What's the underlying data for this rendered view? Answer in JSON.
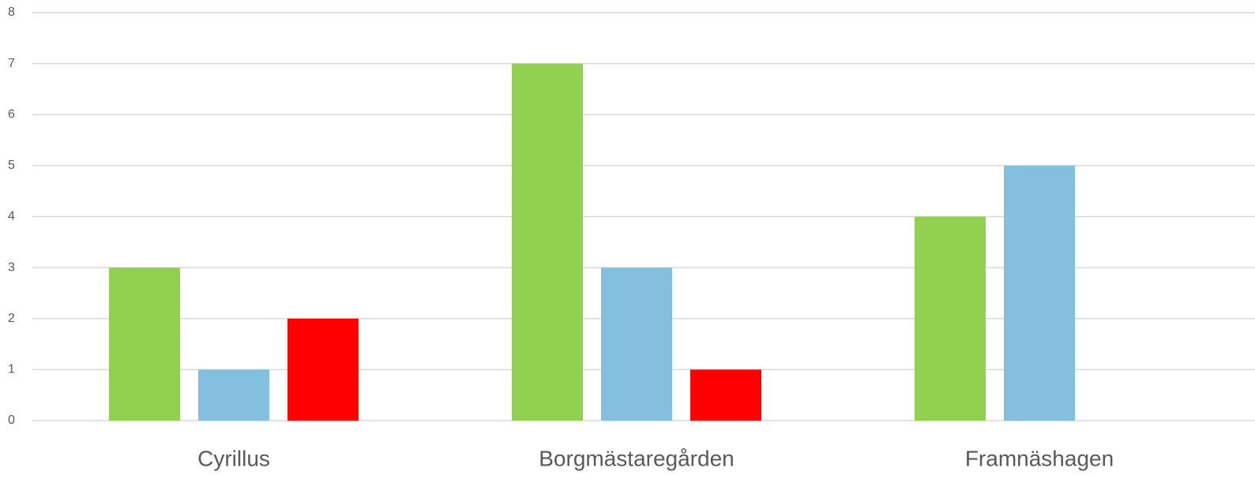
{
  "chart_data": {
    "type": "bar",
    "categories": [
      "Cyrillus",
      "Borgmästaregården",
      "Framnäshagen"
    ],
    "series": [
      {
        "color": "#92d050",
        "values": [
          3,
          7,
          4
        ]
      },
      {
        "color": "#83bfdf",
        "values": [
          1,
          3,
          5
        ]
      },
      {
        "color": "#ff0000",
        "values": [
          2,
          1,
          0
        ]
      }
    ],
    "ylim": [
      0,
      8
    ],
    "yticks": [
      0,
      1,
      2,
      3,
      4,
      5,
      6,
      7,
      8
    ],
    "grid": true
  }
}
